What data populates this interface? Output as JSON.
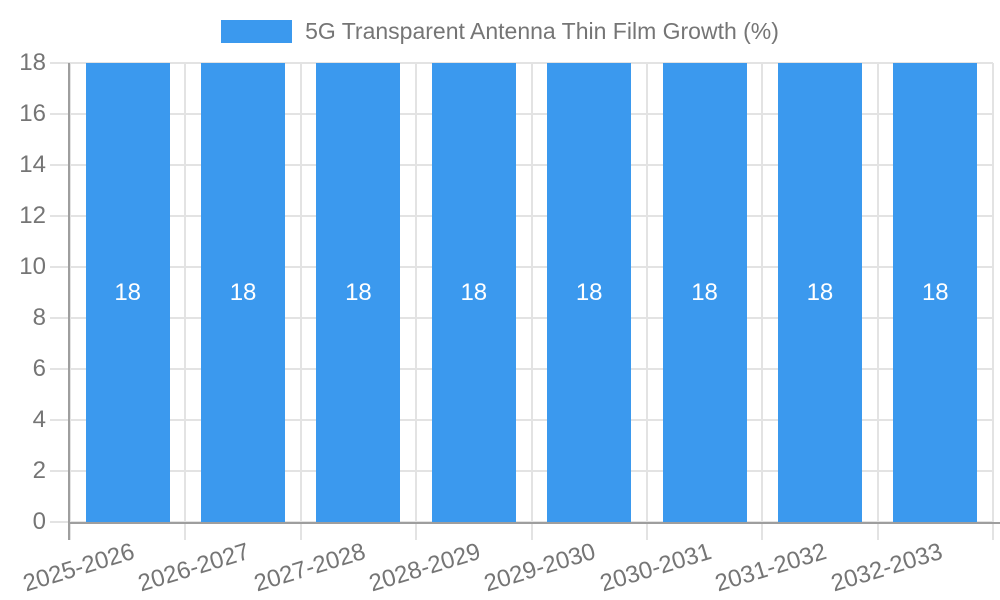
{
  "chart_data": {
    "type": "bar",
    "title": "5G Transparent Antenna Thin Film Growth (%)",
    "legend_entries": [
      "5G Transparent Antenna Thin Film Growth (%)"
    ],
    "legend_position": "top",
    "categories": [
      "2025-2026",
      "2026-2027",
      "2027-2028",
      "2028-2029",
      "2029-2030",
      "2030-2031",
      "2031-2032",
      "2032-2033"
    ],
    "values": [
      18,
      18,
      18,
      18,
      18,
      18,
      18,
      18
    ],
    "bar_value_labels": [
      "18",
      "18",
      "18",
      "18",
      "18",
      "18",
      "18",
      "18"
    ],
    "y_ticks": [
      0,
      2,
      4,
      6,
      8,
      10,
      12,
      14,
      16,
      18
    ],
    "ylim": [
      0,
      18
    ],
    "xlabel": "",
    "ylabel": "",
    "grid": true,
    "x_tick_rotation_deg": -17
  },
  "colors": {
    "bar": "#3B99EE",
    "grid": "#e3e3e3",
    "axis": "#9e9e9e",
    "tick_label": "#757575",
    "legend_text": "#757575",
    "bar_value_text": "#ffffff",
    "background": "#ffffff"
  }
}
